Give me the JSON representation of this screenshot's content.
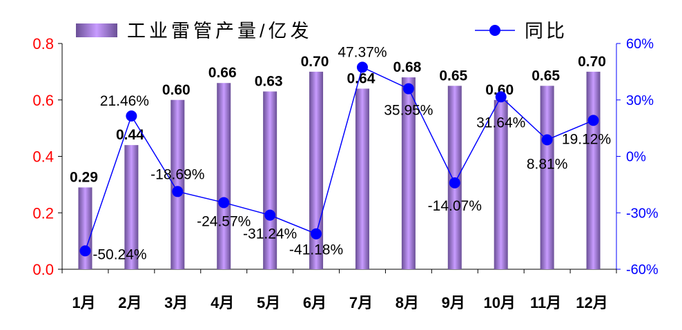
{
  "chart_data": {
    "type": "bar+line",
    "categories": [
      "1月",
      "2月",
      "3月",
      "4月",
      "5月",
      "6月",
      "7月",
      "8月",
      "9月",
      "10月",
      "11月",
      "12月"
    ],
    "series": [
      {
        "name": "工业雷管产量/亿发",
        "type": "bar",
        "axis": "left",
        "values": [
          0.29,
          0.44,
          0.6,
          0.66,
          0.63,
          0.7,
          0.64,
          0.68,
          0.65,
          0.6,
          0.65,
          0.7
        ],
        "labels": [
          "0.29",
          "0.44",
          "0.60",
          "0.66",
          "0.63",
          "0.70",
          "0.64",
          "0.68",
          "0.65",
          "0.60",
          "0.65",
          "0.70"
        ]
      },
      {
        "name": "同比",
        "type": "line",
        "axis": "right",
        "values": [
          -50.24,
          21.46,
          -18.69,
          -24.57,
          -31.24,
          -41.18,
          47.37,
          35.95,
          -14.07,
          31.64,
          8.81,
          19.12
        ],
        "labels": [
          "-50.24%",
          "21.46%",
          "-18.69%",
          "-24.57%",
          "-31.24%",
          "-41.18%",
          "47.37%",
          "35.95%",
          "-14.07%",
          "31.64%",
          "8.81%",
          "19.12%"
        ]
      }
    ],
    "yleft": {
      "range": [
        0,
        0.8
      ],
      "ticks": [
        "0.0",
        "0.2",
        "0.4",
        "0.6",
        "0.8"
      ]
    },
    "yright": {
      "range": [
        -60,
        60
      ],
      "ticks": [
        "-60%",
        "-30%",
        "0%",
        "30%",
        "60%"
      ]
    },
    "legend": "top",
    "colors": {
      "left_axis": "#ff0000",
      "right_axis": "#0000ff",
      "bar_dark": "#6a4f96",
      "bar_light": "#c89cff",
      "line": "#0000ff"
    }
  }
}
